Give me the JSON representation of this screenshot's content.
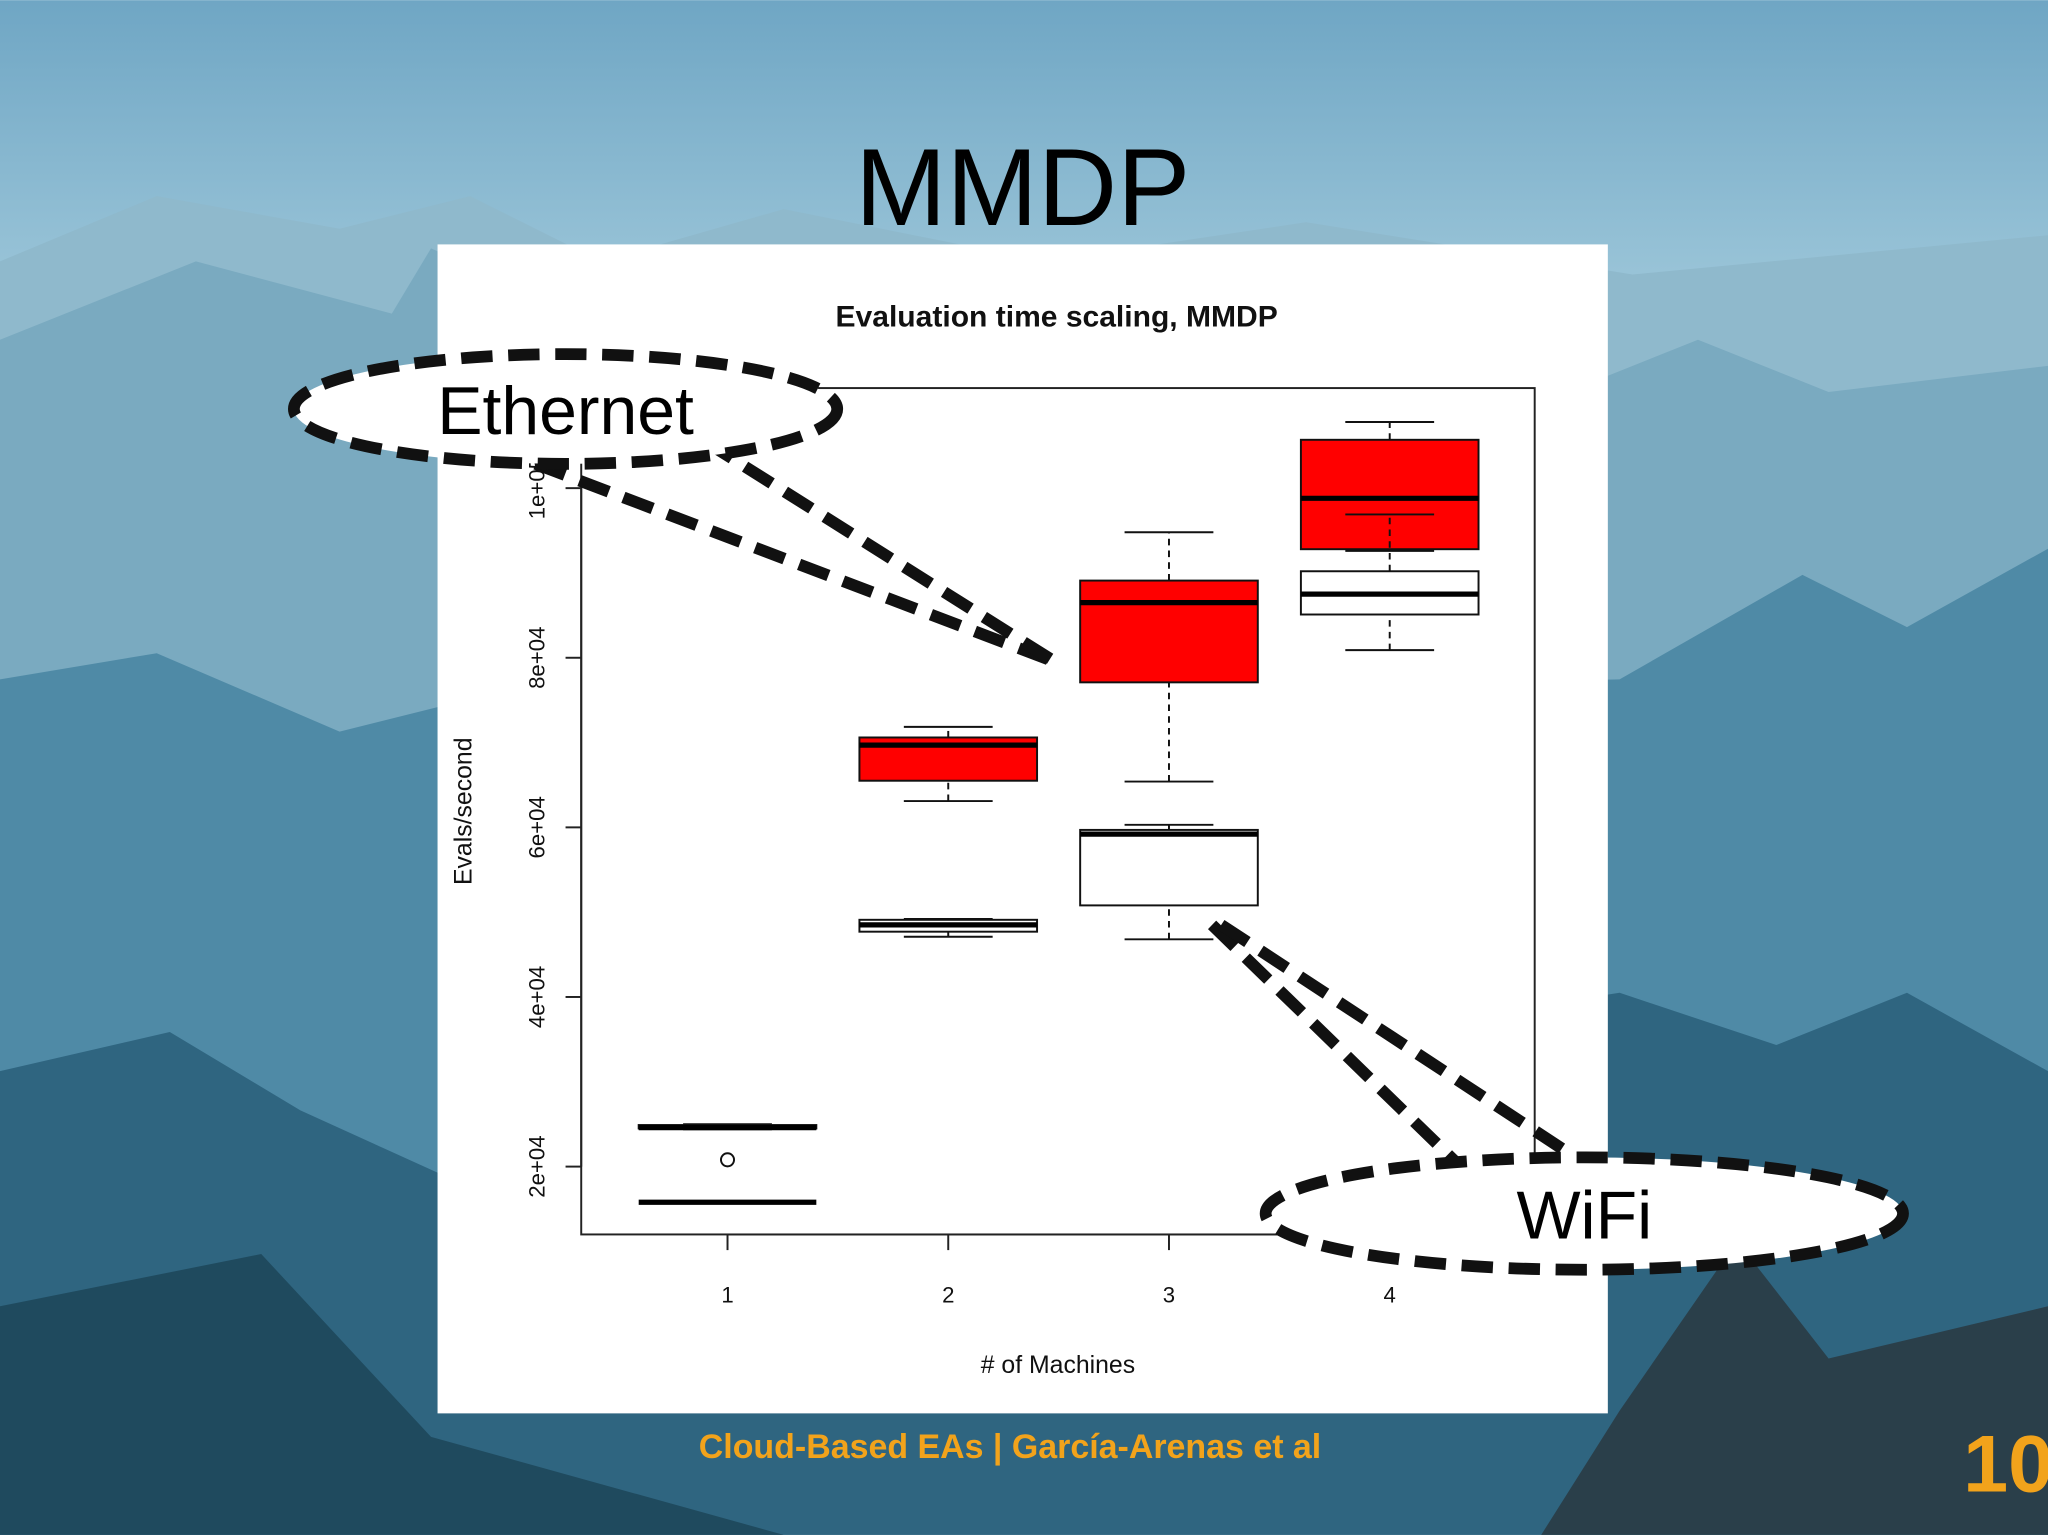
{
  "slide": {
    "title": "MMDP",
    "footer": "Cloud-Based EAs | García-Arenas et al",
    "page": "10"
  },
  "chart_data": {
    "type": "boxplot",
    "title": "Evaluation time scaling, MMDP",
    "x_label": "# of Machines",
    "y_label": "Evals/second",
    "categories": [
      "1",
      "2",
      "3",
      "4"
    ],
    "ylim": [
      12000,
      111800
    ],
    "yticks": [
      {
        "value": 20000,
        "label": "2e+04"
      },
      {
        "value": 40000,
        "label": "4e+04"
      },
      {
        "value": 60000,
        "label": "6e+04"
      },
      {
        "value": 80000,
        "label": "8e+04"
      },
      {
        "value": 100000,
        "label": "1e+05"
      }
    ],
    "series": [
      {
        "name": "Ethernet",
        "color": "#ff0000",
        "min": [
          24400,
          63100,
          65400,
          92600
        ],
        "q1": [
          24500,
          65500,
          77100,
          92800
        ],
        "median": [
          24600,
          69700,
          86500,
          98800
        ],
        "q3": [
          24900,
          70600,
          89100,
          105700
        ],
        "max": [
          25000,
          71850,
          94800,
          107800
        ],
        "outliers": [
          [
            20800
          ],
          [],
          [],
          []
        ]
      },
      {
        "name": "WiFi",
        "color": "#ffffff",
        "min": [
          15700,
          47100,
          46800,
          80900
        ],
        "q1": [
          15800,
          47700,
          50800,
          85100
        ],
        "median": [
          15800,
          48500,
          59200,
          87500
        ],
        "q3": [
          15800,
          49100,
          59700,
          90200
        ],
        "max": [
          15900,
          49200,
          60300,
          96900
        ],
        "outliers": [
          [],
          [],
          [],
          []
        ]
      }
    ]
  }
}
